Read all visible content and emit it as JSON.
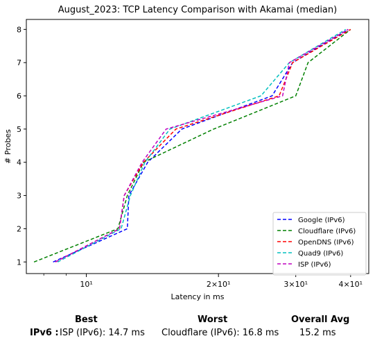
{
  "chart_data": {
    "type": "line",
    "title": "August_2023: TCP Latency Comparison with Akamai (median)",
    "xlabel": "Latency in ms",
    "ylabel": "# Probes",
    "xscale": "log",
    "xlim": [
      7.3,
      44
    ],
    "ylim": [
      0.65,
      8.3
    ],
    "x_ticks": [
      {
        "value": 10,
        "label": "10¹"
      },
      {
        "value": 20,
        "label": "2×10¹"
      },
      {
        "value": 30,
        "label": "3×10¹"
      },
      {
        "value": 40,
        "label": "4×10¹"
      }
    ],
    "y_ticks": [
      1,
      2,
      3,
      4,
      5,
      6,
      7,
      8
    ],
    "grid": false,
    "legend_position": "lower-right",
    "line_style": "dashed",
    "series": [
      {
        "name": "Google (IPv6)",
        "color": "#0000ff",
        "points": [
          [
            8.4,
            1
          ],
          [
            12.4,
            2
          ],
          [
            12.5,
            3
          ],
          [
            13.8,
            4
          ],
          [
            16.5,
            5
          ],
          [
            26.5,
            6
          ],
          [
            29.5,
            7
          ],
          [
            39.5,
            8
          ]
        ]
      },
      {
        "name": "Cloudflare (IPv6)",
        "color": "#008000",
        "points": [
          [
            7.6,
            1
          ],
          [
            11.8,
            2
          ],
          [
            12.4,
            3
          ],
          [
            13.5,
            4
          ],
          [
            19.5,
            5
          ],
          [
            30.0,
            6
          ],
          [
            32.0,
            7
          ],
          [
            40.0,
            8
          ]
        ]
      },
      {
        "name": "OpenDNS (IPv6)",
        "color": "#ff0000",
        "points": [
          [
            8.5,
            1
          ],
          [
            11.9,
            2
          ],
          [
            12.2,
            3
          ],
          [
            13.5,
            4
          ],
          [
            16.0,
            5
          ],
          [
            27.5,
            6
          ],
          [
            29.5,
            7
          ],
          [
            40.0,
            8
          ]
        ]
      },
      {
        "name": "Quad9 (IPv6)",
        "color": "#00bfbf",
        "points": [
          [
            8.6,
            1
          ],
          [
            12.0,
            2
          ],
          [
            12.6,
            3
          ],
          [
            13.6,
            4
          ],
          [
            15.5,
            5
          ],
          [
            25.0,
            6
          ],
          [
            29.0,
            7
          ],
          [
            39.0,
            8
          ]
        ]
      },
      {
        "name": "ISP (IPv6)",
        "color": "#bf00bf",
        "points": [
          [
            8.5,
            1
          ],
          [
            11.9,
            2
          ],
          [
            12.2,
            3
          ],
          [
            13.4,
            4
          ],
          [
            15.2,
            5
          ],
          [
            28.0,
            6
          ],
          [
            29.0,
            7
          ],
          [
            39.5,
            8
          ]
        ]
      }
    ]
  },
  "summary": {
    "best_header": "Best",
    "worst_header": "Worst",
    "avg_header": "Overall Avg",
    "row_label": "IPv6 :",
    "best_value": "ISP (IPv6): 14.7 ms",
    "worst_value": "Cloudflare (IPv6): 16.8 ms",
    "avg_value": "15.2 ms"
  }
}
